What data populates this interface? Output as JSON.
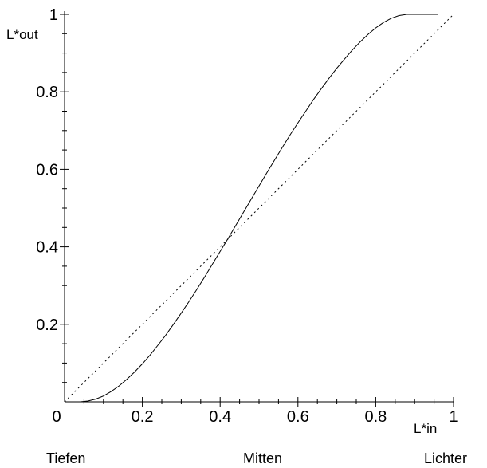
{
  "chart_data": {
    "type": "line",
    "title": "",
    "xlabel": "L*in",
    "ylabel": "L*out",
    "xlim": [
      0,
      1
    ],
    "ylim": [
      0,
      1
    ],
    "grid": false,
    "x_ticks": [
      {
        "value": 0,
        "label": "0"
      },
      {
        "value": 0.2,
        "label": "0.2"
      },
      {
        "value": 0.4,
        "label": "0.4"
      },
      {
        "value": 0.6,
        "label": "0.6"
      },
      {
        "value": 0.8,
        "label": "0.8"
      },
      {
        "value": 1,
        "label": "1"
      }
    ],
    "y_ticks": [
      {
        "value": 0.2,
        "label": "0.2"
      },
      {
        "value": 0.4,
        "label": "0.4"
      },
      {
        "value": 0.6,
        "label": "0.6"
      },
      {
        "value": 0.8,
        "label": "0.8"
      },
      {
        "value": 1,
        "label": "1"
      }
    ],
    "zone_labels": [
      "Tiefen",
      "Mitten",
      "Lichter"
    ],
    "series": [
      {
        "style": "solid",
        "color": "#000000",
        "x": [
          0.04,
          0.06,
          0.08,
          0.1,
          0.12,
          0.14,
          0.16,
          0.18,
          0.2,
          0.22,
          0.24,
          0.26,
          0.28,
          0.3,
          0.32,
          0.34,
          0.36,
          0.38,
          0.4,
          0.42,
          0.44,
          0.46,
          0.48,
          0.5,
          0.52,
          0.54,
          0.56,
          0.58,
          0.6,
          0.62,
          0.64,
          0.66,
          0.68,
          0.7,
          0.72,
          0.74,
          0.76,
          0.78,
          0.8,
          0.82,
          0.84,
          0.86,
          0.88,
          0.9,
          0.92,
          0.94,
          0.96
        ],
        "y": [
          0.0,
          0.002,
          0.007,
          0.015,
          0.027,
          0.041,
          0.058,
          0.077,
          0.098,
          0.121,
          0.146,
          0.172,
          0.2,
          0.229,
          0.259,
          0.29,
          0.322,
          0.355,
          0.388,
          0.421,
          0.455,
          0.489,
          0.523,
          0.557,
          0.591,
          0.624,
          0.657,
          0.689,
          0.72,
          0.75,
          0.78,
          0.808,
          0.835,
          0.861,
          0.885,
          0.908,
          0.929,
          0.948,
          0.965,
          0.979,
          0.99,
          0.997,
          1.0,
          1.0,
          1.0,
          1.0,
          1.0
        ]
      },
      {
        "style": "dotted",
        "color": "#000000",
        "x": [
          0,
          1
        ],
        "y": [
          0,
          1
        ]
      }
    ]
  }
}
